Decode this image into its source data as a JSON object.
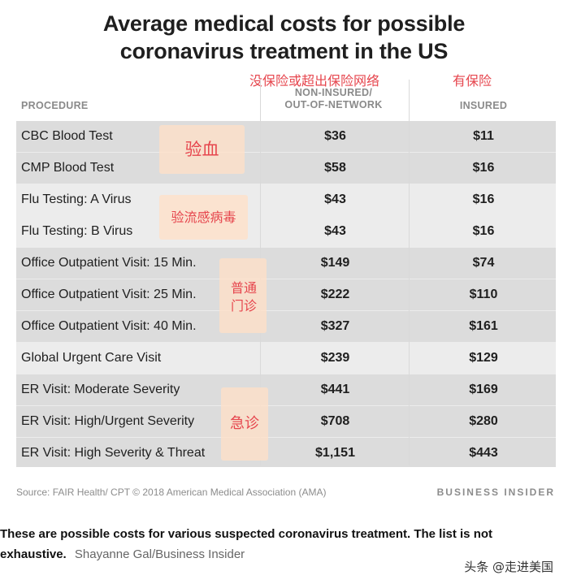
{
  "title": {
    "line1": "Average medical costs for possible",
    "line2": "coronavirus treatment in the US"
  },
  "annotations_cn": {
    "non_insured_header": "没保险或超出保险网络",
    "insured_header": "有保险",
    "blood_group": "验血",
    "flu_group": "验流感病毒",
    "office_group_line1": "普通",
    "office_group_line2": "门诊",
    "er_group": "急诊"
  },
  "columns": {
    "procedure": "PROCEDURE",
    "non_insured_line1": "NON-INSURED/",
    "non_insured_line2": "OUT-OF-NETWORK",
    "insured": "INSURED"
  },
  "rows": [
    {
      "procedure": "CBC Blood Test",
      "non_insured": "$36",
      "insured": "$11"
    },
    {
      "procedure": "CMP Blood Test",
      "non_insured": "$58",
      "insured": "$16"
    },
    {
      "procedure": "Flu Testing: A Virus",
      "non_insured": "$43",
      "insured": "$16"
    },
    {
      "procedure": "Flu Testing: B Virus",
      "non_insured": "$43",
      "insured": "$16"
    },
    {
      "procedure": "Office Outpatient Visit: 15 Min.",
      "non_insured": "$149",
      "insured": "$74"
    },
    {
      "procedure": "Office Outpatient Visit: 25 Min.",
      "non_insured": "$222",
      "insured": "$110"
    },
    {
      "procedure": "Office Outpatient Visit: 40 Min.",
      "non_insured": "$327",
      "insured": "$161"
    },
    {
      "procedure": "Global Urgent Care Visit",
      "non_insured": "$239",
      "insured": "$129"
    },
    {
      "procedure": "ER Visit: Moderate Severity",
      "non_insured": "$441",
      "insured": "$169"
    },
    {
      "procedure": "ER Visit: High/Urgent Severity",
      "non_insured": "$708",
      "insured": "$280"
    },
    {
      "procedure": "ER Visit: High Severity & Threat",
      "non_insured": "$1,151",
      "insured": "$443"
    }
  ],
  "source": "Source: FAIR Health/ CPT © 2018 American Medical Association (AMA)",
  "brand": "BUSINESS INSIDER",
  "caption": {
    "text": "These are possible costs for various suspected coronavirus treatment. The list is not exhaustive.",
    "credit": "Shayanne Gal/Business Insider"
  },
  "watermark": "头条 @走进美国",
  "colors": {
    "annotation_red": "#e6454d",
    "annotation_bg": "#ffe0c8",
    "band": "#dcdcdc",
    "table_bg": "#ececec"
  }
}
